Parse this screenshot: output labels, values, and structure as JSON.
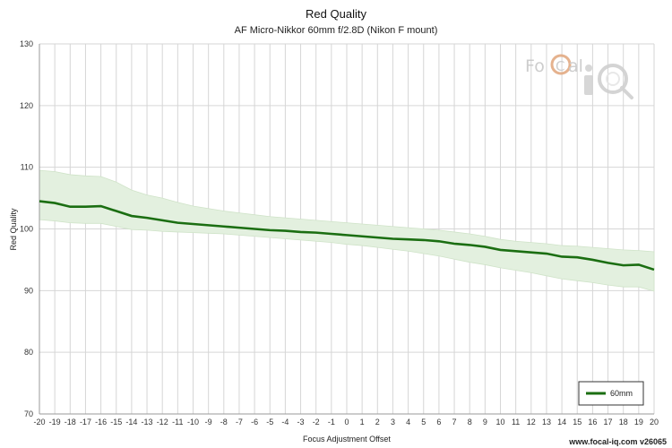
{
  "chart_data": {
    "type": "line",
    "title": "Red Quality",
    "subtitle": "AF Micro-Nikkor 60mm f/2.8D (Nikon F mount)",
    "xlabel": "Focus Adjustment Offset",
    "ylabel": "Red Quality",
    "xlim": [
      -20,
      20
    ],
    "ylim": [
      70,
      130
    ],
    "x_ticks": [
      -20,
      -19,
      -18,
      -17,
      -16,
      -15,
      -14,
      -13,
      -12,
      -11,
      -10,
      -9,
      -8,
      -7,
      -6,
      -5,
      -4,
      -3,
      -2,
      -1,
      0,
      1,
      2,
      3,
      4,
      5,
      6,
      7,
      8,
      9,
      10,
      11,
      12,
      13,
      14,
      15,
      16,
      17,
      18,
      19,
      20
    ],
    "y_ticks": [
      70,
      80,
      90,
      100,
      110,
      120,
      130
    ],
    "grid": true,
    "legend_position": "bottom-right",
    "series": [
      {
        "name": "60mm",
        "color": "#1b6e12",
        "band_color": "#e3f0df",
        "x": [
          -20,
          -19,
          -18,
          -17,
          -16,
          -15,
          -14,
          -13,
          -12,
          -11,
          -10,
          -9,
          -8,
          -7,
          -6,
          -5,
          -4,
          -3,
          -2,
          -1,
          0,
          1,
          2,
          3,
          4,
          5,
          6,
          7,
          8,
          9,
          10,
          11,
          12,
          13,
          14,
          15,
          16,
          17,
          18,
          19,
          20
        ],
        "values": [
          104.5,
          104.2,
          103.6,
          103.6,
          103.7,
          102.9,
          102.1,
          101.8,
          101.4,
          101.0,
          100.8,
          100.6,
          100.4,
          100.2,
          100.0,
          99.8,
          99.7,
          99.5,
          99.4,
          99.2,
          99.0,
          98.8,
          98.6,
          98.4,
          98.3,
          98.2,
          98.0,
          97.6,
          97.4,
          97.1,
          96.6,
          96.4,
          96.2,
          96.0,
          95.5,
          95.4,
          95.0,
          94.5,
          94.1,
          94.2,
          93.4
        ],
        "upper": [
          109.5,
          109.3,
          108.8,
          108.6,
          108.5,
          107.6,
          106.3,
          105.5,
          105.0,
          104.3,
          103.7,
          103.3,
          102.9,
          102.6,
          102.3,
          102.0,
          101.8,
          101.6,
          101.4,
          101.2,
          101.0,
          100.8,
          100.6,
          100.4,
          100.2,
          100.0,
          99.8,
          99.5,
          99.2,
          98.8,
          98.3,
          98.0,
          97.8,
          97.6,
          97.3,
          97.2,
          97.0,
          96.8,
          96.6,
          96.5,
          96.3
        ],
        "lower": [
          101.5,
          101.3,
          101.0,
          100.9,
          100.9,
          100.4,
          99.9,
          99.8,
          99.6,
          99.5,
          99.4,
          99.3,
          99.2,
          99.0,
          98.8,
          98.6,
          98.4,
          98.2,
          98.0,
          97.8,
          97.5,
          97.3,
          97.0,
          96.7,
          96.4,
          96.0,
          95.6,
          95.1,
          94.6,
          94.2,
          93.7,
          93.3,
          92.9,
          92.4,
          91.9,
          91.6,
          91.3,
          90.9,
          90.6,
          90.6,
          89.9
        ]
      }
    ]
  },
  "watermark": {
    "logo_text": "FoCal iQ",
    "color": "#c9c9c9",
    "accent_color": "#e1a77f"
  },
  "footer": {
    "text": "www.focal-iq.com v26065"
  }
}
